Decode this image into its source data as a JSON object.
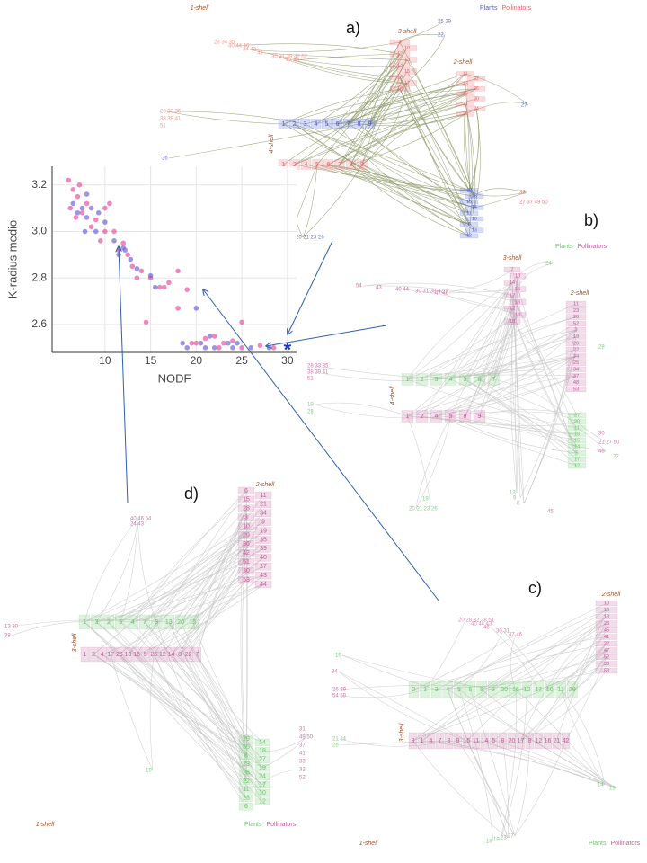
{
  "chart_data": {
    "type": "scatter",
    "xlabel": "NODF",
    "ylabel": "K-radius medio",
    "xlim": [
      4.2,
      31
    ],
    "xticks": [
      10,
      15,
      20,
      25,
      30
    ],
    "ylim": [
      2.48,
      3.28
    ],
    "yticks": [
      2.6,
      2.8,
      {
        "value": 3,
        "label": "3.0"
      },
      3.2
    ],
    "grid": true,
    "series": [
      {
        "color": "#e8489a",
        "x": [
          6,
          6.5,
          7,
          6.2,
          7.5,
          8,
          9,
          10,
          10.5,
          11,
          12,
          12.5,
          13,
          14,
          15,
          16,
          17,
          18,
          18,
          14.5,
          19.5,
          20,
          21,
          22,
          23,
          24,
          25,
          25,
          27,
          28.5,
          19,
          16.5,
          9.5,
          8.5,
          7.2,
          11.5,
          13.5,
          22.5,
          6.8,
          10
        ],
        "values": [
          3.22,
          3.18,
          3.15,
          3.1,
          3.08,
          3.12,
          3.05,
          3.1,
          3.12,
          3.0,
          2.95,
          2.9,
          2.85,
          2.83,
          2.8,
          2.76,
          2.78,
          2.83,
          2.67,
          2.61,
          2.52,
          2.52,
          2.54,
          2.55,
          2.52,
          2.53,
          2.61,
          2.5,
          2.51,
          2.5,
          2.75,
          2.76,
          2.96,
          3.02,
          3.2,
          2.92,
          2.8,
          2.5,
          3.06,
          3.0
        ]
      },
      {
        "color": "#6a5ad8",
        "x": [
          6.5,
          7,
          7.5,
          8,
          8.5,
          9,
          10,
          11,
          11.5,
          12,
          12.8,
          13.5,
          15,
          15.5,
          18.5,
          19,
          20.5,
          21,
          22,
          23.5,
          24.5,
          26,
          28,
          20,
          9.3,
          8,
          7.8,
          12.2,
          21.5,
          24
        ],
        "values": [
          3.12,
          3.08,
          3.1,
          3.06,
          3.1,
          3.0,
          3.04,
          2.96,
          2.9,
          2.93,
          2.88,
          2.84,
          2.81,
          2.76,
          2.52,
          2.5,
          2.52,
          2.5,
          2.5,
          2.52,
          2.52,
          2.5,
          2.5,
          2.67,
          3.08,
          3.16,
          3.0,
          2.92,
          2.55,
          2.5
        ]
      }
    ],
    "annotations": [
      {
        "text": "*",
        "x": 30,
        "y": 2.5,
        "color": "#2233cc"
      }
    ]
  },
  "panels": [
    {
      "label": "a)",
      "legend": [
        {
          "text": "Plants",
          "color": "#4a5bd4"
        },
        {
          "text": "Pollinators",
          "color": "#e8606a"
        }
      ],
      "shells": [
        "1-shell",
        "3-shell",
        "2-shell",
        "4-shell"
      ],
      "groups": [
        {
          "color": "#e8606a",
          "labels": [
            "3",
            "10",
            "12",
            "13",
            "14",
            "15",
            "16",
            "17",
            "18"
          ]
        },
        {
          "color": "#4a5bd4",
          "labels": [
            "25 29",
            "22"
          ]
        },
        {
          "color": "#f08a8a",
          "labels": [
            "28 34 35",
            "40 44 46",
            "34 43",
            "43",
            "30 31 38 42 52",
            "47 48"
          ]
        },
        {
          "color": "#e8606a",
          "labels": [
            "11",
            "22",
            "23",
            "26",
            "19",
            "20",
            "21",
            "24",
            "25"
          ]
        },
        {
          "color": "#4a5bd4",
          "labels": [
            "1",
            "2",
            "3",
            "4",
            "5",
            "6",
            "7",
            "8",
            "9"
          ]
        },
        {
          "color": "#e8606a",
          "labels": [
            "1",
            "2",
            "4",
            "5",
            "6",
            "7",
            "8",
            "9"
          ]
        },
        {
          "color": "#4a5bd4",
          "labels": [
            "18",
            "16",
            "15",
            "14",
            "11",
            "10",
            "8",
            "13",
            "12"
          ]
        },
        {
          "color": "#4a5bd4",
          "labels": [
            "27"
          ]
        },
        {
          "color": "#4a5bd4",
          "labels": [
            "26"
          ]
        },
        {
          "color": "#4a5bd4",
          "labels": [
            "24",
            "19",
            "20 21 23 26"
          ]
        },
        {
          "color": "#f08a8a",
          "labels": [
            "28 33 35",
            "38 39 41",
            "51"
          ]
        },
        {
          "color": "#e8606a",
          "labels": [
            "32",
            "27 37 49 50"
          ]
        }
      ]
    },
    {
      "label": "b)",
      "legend": [
        {
          "text": "Plants",
          "color": "#6cc46c"
        },
        {
          "text": "Pollinators",
          "color": "#c0609a"
        }
      ],
      "shells": [
        "3-shell",
        "2-shell",
        "4-shell"
      ],
      "groups": [
        {
          "color": "#c0609a",
          "labels": [
            "7",
            "10",
            "14",
            "15",
            "17",
            "16",
            "12",
            "13",
            "18"
          ]
        },
        {
          "color": "#6cc46c",
          "labels": [
            "24"
          ]
        },
        {
          "color": "#c0609a",
          "labels": [
            "54",
            "43",
            "40 44",
            "30 31 38 42",
            "47 46"
          ]
        },
        {
          "color": "#c0609a",
          "labels": [
            "11",
            "23",
            "26",
            "52",
            "3",
            "19",
            "20",
            "22",
            "24",
            "25",
            "34",
            "37",
            "48",
            "53"
          ]
        },
        {
          "color": "#6cc46c",
          "labels": [
            "28"
          ]
        },
        {
          "color": "#6cc46c",
          "labels": [
            "1",
            "2",
            "3",
            "4",
            "5",
            "6",
            "7"
          ]
        },
        {
          "color": "#c0609a",
          "labels": [
            "1",
            "2",
            "4",
            "5",
            "8",
            "9"
          ]
        },
        {
          "color": "#6cc46c",
          "labels": [
            "27",
            "20",
            "11",
            "18",
            "15",
            "14",
            "5",
            "17",
            "12"
          ]
        },
        {
          "color": "#c0609a",
          "labels": [
            "28 33 35",
            "38 39 41",
            "51"
          ]
        },
        {
          "color": "#6cc46c",
          "labels": [
            "19",
            "28"
          ]
        },
        {
          "color": "#c0609a",
          "labels": [
            "30",
            "21 27 50",
            "46"
          ]
        },
        {
          "color": "#6cc46c",
          "labels": [
            "22"
          ]
        },
        {
          "color": "#6cc46c",
          "labels": [
            "19",
            "20 21 23 26"
          ]
        },
        {
          "color": "#6cc46c",
          "labels": [
            "13",
            "9",
            "8"
          ]
        },
        {
          "color": "#c0609a",
          "labels": [
            "45"
          ]
        }
      ]
    },
    {
      "label": "c)",
      "legend": [
        {
          "text": "Plants",
          "color": "#6cc46c"
        },
        {
          "text": "Pollinators",
          "color": "#c0609a"
        }
      ],
      "shells": [
        "2-shell",
        "3-shell",
        "1-shell"
      ],
      "groups": [
        {
          "color": "#c0609a",
          "labels": [
            "10",
            "13",
            "18",
            "23",
            "45",
            "41",
            "22",
            "47",
            "52",
            "36",
            "53"
          ]
        },
        {
          "color": "#d070a0",
          "labels": [
            "20 28 32 38 51",
            "40 44 43",
            "46",
            "30 31",
            "47 46"
          ]
        },
        {
          "color": "#6cc46c",
          "labels": [
            "16"
          ]
        },
        {
          "color": "#c0609a",
          "labels": [
            "34"
          ]
        },
        {
          "color": "#6cc46c",
          "labels": [
            "2",
            "1",
            "3",
            "4",
            "5",
            "6",
            "8",
            "9",
            "20",
            "16",
            "12",
            "17",
            "10",
            "11",
            "29"
          ]
        },
        {
          "color": "#c0609a",
          "labels": [
            "3",
            "1",
            "4",
            "7",
            "3",
            "9",
            "15",
            "11",
            "14",
            "5",
            "8",
            "20",
            "17",
            "8",
            "12",
            "16",
            "21",
            "42"
          ]
        },
        {
          "color": "#c0609a",
          "labels": [
            "26 29",
            "54 59"
          ]
        },
        {
          "color": "#6cc46c",
          "labels": [
            "21 24",
            "26"
          ]
        },
        {
          "color": "#6cc46c",
          "labels": [
            "14",
            "19"
          ]
        },
        {
          "color": "#6cc46c",
          "labels": [
            "18",
            "19",
            "23",
            "27"
          ]
        }
      ]
    },
    {
      "label": "d)",
      "legend": [
        {
          "text": "Plants",
          "color": "#6cc46c"
        },
        {
          "text": "Pollinators",
          "color": "#c0609a"
        }
      ],
      "shells": [
        "2-shell",
        "3-shell",
        "1-shell"
      ],
      "groups": [
        {
          "color": "#c0609a",
          "labels": [
            "6",
            "15",
            "28",
            "3",
            "10",
            "29",
            "36",
            "42",
            "51",
            "30",
            "53"
          ]
        },
        {
          "color": "#c0609a",
          "labels": [
            "11",
            "21",
            "34",
            "9",
            "19",
            "35",
            "39",
            "40",
            "27",
            "43",
            "44"
          ]
        },
        {
          "color": "#c0609a",
          "labels": [
            "40 46 54",
            "24 43"
          ]
        },
        {
          "color": "#c0609a",
          "labels": [
            "13 20",
            "38"
          ]
        },
        {
          "color": "#6cc46c",
          "labels": [
            "1",
            "3",
            "2",
            "5",
            "4",
            "7",
            "9",
            "13",
            "20",
            "15"
          ]
        },
        {
          "color": "#c0609a",
          "labels": [
            "1",
            "2",
            "4",
            "17",
            "25",
            "18",
            "16",
            "5",
            "26",
            "12",
            "14",
            "8",
            "22",
            "7"
          ]
        },
        {
          "color": "#6cc46c",
          "labels": [
            "29",
            "55",
            "8",
            "23",
            "26",
            "22",
            "11",
            "28",
            "6"
          ]
        },
        {
          "color": "#6cc46c",
          "labels": [
            "14",
            "18",
            "27",
            "19",
            "24",
            "17",
            "10",
            "12"
          ]
        },
        {
          "color": "#c0609a",
          "labels": [
            "31",
            "49  50",
            "37",
            "41",
            "33",
            "32",
            "52"
          ]
        },
        {
          "color": "#6cc46c",
          "labels": [
            "19"
          ]
        }
      ]
    }
  ]
}
